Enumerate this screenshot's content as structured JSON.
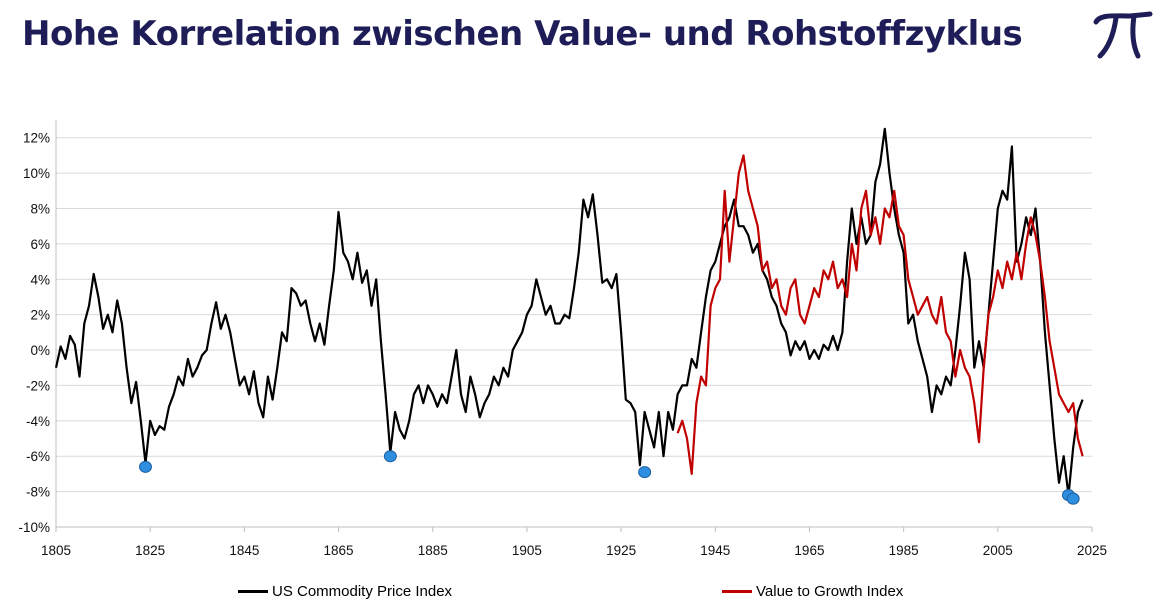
{
  "page": {
    "title": "Hohe Korrelation zwischen Value- und Rohstoffzyklus",
    "logo_icon": "pi-logo-icon"
  },
  "chart_data": {
    "type": "line",
    "title": "",
    "xlabel": "",
    "ylabel": "",
    "xlim": [
      1805,
      2025
    ],
    "ylim": [
      -10,
      13
    ],
    "x_ticks": [
      1805,
      1825,
      1845,
      1865,
      1885,
      1905,
      1925,
      1945,
      1965,
      1985,
      2005,
      2025
    ],
    "y_ticks": [
      -10,
      -8,
      -6,
      -4,
      -2,
      0,
      2,
      4,
      6,
      8,
      10,
      12
    ],
    "y_tick_suffix": "%",
    "grid": "horizontal",
    "legend": "bottom",
    "series": [
      {
        "name": "US Commodity Price Index",
        "color": "#000000",
        "points": [
          [
            1805,
            -1.0
          ],
          [
            1806,
            0.2
          ],
          [
            1807,
            -0.5
          ],
          [
            1808,
            0.8
          ],
          [
            1809,
            0.3
          ],
          [
            1810,
            -1.5
          ],
          [
            1811,
            1.5
          ],
          [
            1812,
            2.5
          ],
          [
            1813,
            4.3
          ],
          [
            1814,
            3.0
          ],
          [
            1815,
            1.2
          ],
          [
            1816,
            2.0
          ],
          [
            1817,
            1.0
          ],
          [
            1818,
            2.8
          ],
          [
            1819,
            1.5
          ],
          [
            1820,
            -1.0
          ],
          [
            1821,
            -3.0
          ],
          [
            1822,
            -1.8
          ],
          [
            1823,
            -4.0
          ],
          [
            1824,
            -6.4
          ],
          [
            1825,
            -4.0
          ],
          [
            1826,
            -4.8
          ],
          [
            1827,
            -4.3
          ],
          [
            1828,
            -4.5
          ],
          [
            1829,
            -3.2
          ],
          [
            1830,
            -2.5
          ],
          [
            1831,
            -1.5
          ],
          [
            1832,
            -2.0
          ],
          [
            1833,
            -0.5
          ],
          [
            1834,
            -1.5
          ],
          [
            1835,
            -1.0
          ],
          [
            1836,
            -0.3
          ],
          [
            1837,
            0.0
          ],
          [
            1838,
            1.5
          ],
          [
            1839,
            2.7
          ],
          [
            1840,
            1.2
          ],
          [
            1841,
            2.0
          ],
          [
            1842,
            1.0
          ],
          [
            1843,
            -0.5
          ],
          [
            1844,
            -2.0
          ],
          [
            1845,
            -1.5
          ],
          [
            1846,
            -2.5
          ],
          [
            1847,
            -1.2
          ],
          [
            1848,
            -3.0
          ],
          [
            1849,
            -3.8
          ],
          [
            1850,
            -1.5
          ],
          [
            1851,
            -2.8
          ],
          [
            1852,
            -1.0
          ],
          [
            1853,
            1.0
          ],
          [
            1854,
            0.5
          ],
          [
            1855,
            3.5
          ],
          [
            1856,
            3.2
          ],
          [
            1857,
            2.5
          ],
          [
            1858,
            2.8
          ],
          [
            1859,
            1.5
          ],
          [
            1860,
            0.5
          ],
          [
            1861,
            1.5
          ],
          [
            1862,
            0.3
          ],
          [
            1863,
            2.5
          ],
          [
            1864,
            4.5
          ],
          [
            1865,
            7.8
          ],
          [
            1866,
            5.5
          ],
          [
            1867,
            5.0
          ],
          [
            1868,
            4.0
          ],
          [
            1869,
            5.5
          ],
          [
            1870,
            3.8
          ],
          [
            1871,
            4.5
          ],
          [
            1872,
            2.5
          ],
          [
            1873,
            4.0
          ],
          [
            1874,
            0.5
          ],
          [
            1875,
            -2.5
          ],
          [
            1876,
            -5.8
          ],
          [
            1877,
            -3.5
          ],
          [
            1878,
            -4.5
          ],
          [
            1879,
            -5.0
          ],
          [
            1880,
            -4.0
          ],
          [
            1881,
            -2.5
          ],
          [
            1882,
            -2.0
          ],
          [
            1883,
            -3.0
          ],
          [
            1884,
            -2.0
          ],
          [
            1885,
            -2.5
          ],
          [
            1886,
            -3.2
          ],
          [
            1887,
            -2.5
          ],
          [
            1888,
            -3.0
          ],
          [
            1889,
            -1.5
          ],
          [
            1890,
            0.0
          ],
          [
            1891,
            -2.5
          ],
          [
            1892,
            -3.5
          ],
          [
            1893,
            -1.5
          ],
          [
            1894,
            -2.5
          ],
          [
            1895,
            -3.8
          ],
          [
            1896,
            -3.0
          ],
          [
            1897,
            -2.5
          ],
          [
            1898,
            -1.5
          ],
          [
            1899,
            -2.0
          ],
          [
            1900,
            -1.0
          ],
          [
            1901,
            -1.5
          ],
          [
            1902,
            0.0
          ],
          [
            1903,
            0.5
          ],
          [
            1904,
            1.0
          ],
          [
            1905,
            2.0
          ],
          [
            1906,
            2.5
          ],
          [
            1907,
            4.0
          ],
          [
            1908,
            3.0
          ],
          [
            1909,
            2.0
          ],
          [
            1910,
            2.5
          ],
          [
            1911,
            1.5
          ],
          [
            1912,
            1.5
          ],
          [
            1913,
            2.0
          ],
          [
            1914,
            1.8
          ],
          [
            1915,
            3.5
          ],
          [
            1916,
            5.5
          ],
          [
            1917,
            8.5
          ],
          [
            1918,
            7.5
          ],
          [
            1919,
            8.8
          ],
          [
            1920,
            6.5
          ],
          [
            1921,
            3.8
          ],
          [
            1922,
            4.0
          ],
          [
            1923,
            3.5
          ],
          [
            1924,
            4.3
          ],
          [
            1925,
            1.0
          ],
          [
            1926,
            -2.8
          ],
          [
            1927,
            -3.0
          ],
          [
            1928,
            -3.5
          ],
          [
            1929,
            -6.5
          ],
          [
            1930,
            -3.5
          ],
          [
            1931,
            -4.5
          ],
          [
            1932,
            -5.5
          ],
          [
            1933,
            -3.5
          ],
          [
            1934,
            -6.0
          ],
          [
            1935,
            -3.5
          ],
          [
            1936,
            -4.5
          ],
          [
            1937,
            -2.5
          ],
          [
            1938,
            -2.0
          ],
          [
            1939,
            -2.0
          ],
          [
            1940,
            -0.5
          ],
          [
            1941,
            -1.0
          ],
          [
            1942,
            1.0
          ],
          [
            1943,
            3.0
          ],
          [
            1944,
            4.5
          ],
          [
            1945,
            5.0
          ],
          [
            1946,
            6.0
          ],
          [
            1947,
            7.0
          ],
          [
            1948,
            7.5
          ],
          [
            1949,
            8.5
          ],
          [
            1950,
            7.0
          ],
          [
            1951,
            7.0
          ],
          [
            1952,
            6.5
          ],
          [
            1953,
            5.5
          ],
          [
            1954,
            6.0
          ],
          [
            1955,
            4.5
          ],
          [
            1956,
            4.0
          ],
          [
            1957,
            3.0
          ],
          [
            1958,
            2.5
          ],
          [
            1959,
            1.5
          ],
          [
            1960,
            1.0
          ],
          [
            1961,
            -0.3
          ],
          [
            1962,
            0.5
          ],
          [
            1963,
            0.0
          ],
          [
            1964,
            0.5
          ],
          [
            1965,
            -0.5
          ],
          [
            1966,
            0.0
          ],
          [
            1967,
            -0.5
          ],
          [
            1968,
            0.3
          ],
          [
            1969,
            0.0
          ],
          [
            1970,
            0.8
          ],
          [
            1971,
            0.0
          ],
          [
            1972,
            1.0
          ],
          [
            1973,
            5.0
          ],
          [
            1974,
            8.0
          ],
          [
            1975,
            6.0
          ],
          [
            1976,
            7.5
          ],
          [
            1977,
            6.0
          ],
          [
            1978,
            6.5
          ],
          [
            1979,
            9.5
          ],
          [
            1980,
            10.5
          ],
          [
            1981,
            12.5
          ],
          [
            1982,
            10.0
          ],
          [
            1983,
            8.0
          ],
          [
            1984,
            6.5
          ],
          [
            1985,
            5.5
          ],
          [
            1986,
            1.5
          ],
          [
            1987,
            2.0
          ],
          [
            1988,
            0.5
          ],
          [
            1989,
            -0.5
          ],
          [
            1990,
            -1.5
          ],
          [
            1991,
            -3.5
          ],
          [
            1992,
            -2.0
          ],
          [
            1993,
            -2.5
          ],
          [
            1994,
            -1.5
          ],
          [
            1995,
            -2.0
          ],
          [
            1996,
            0.0
          ],
          [
            1997,
            2.5
          ],
          [
            1998,
            5.5
          ],
          [
            1999,
            4.0
          ],
          [
            2000,
            -1.0
          ],
          [
            2001,
            0.5
          ],
          [
            2002,
            -1.0
          ],
          [
            2003,
            2.0
          ],
          [
            2004,
            5.0
          ],
          [
            2005,
            8.0
          ],
          [
            2006,
            9.0
          ],
          [
            2007,
            8.5
          ],
          [
            2008,
            11.5
          ],
          [
            2009,
            5.0
          ],
          [
            2010,
            6.0
          ],
          [
            2011,
            7.5
          ],
          [
            2012,
            6.5
          ],
          [
            2013,
            8.0
          ],
          [
            2014,
            5.0
          ],
          [
            2015,
            1.0
          ],
          [
            2016,
            -2.0
          ],
          [
            2017,
            -5.0
          ],
          [
            2018,
            -7.5
          ],
          [
            2019,
            -6.0
          ],
          [
            2020,
            -8.2
          ],
          [
            2021,
            -5.5
          ],
          [
            2022,
            -3.5
          ],
          [
            2023,
            -2.8
          ]
        ]
      },
      {
        "name": "Value to Growth Index",
        "color": "#c00000",
        "points": [
          [
            1937,
            -4.7
          ],
          [
            1938,
            -4.0
          ],
          [
            1939,
            -5.0
          ],
          [
            1940,
            -7.0
          ],
          [
            1941,
            -3.0
          ],
          [
            1942,
            -1.5
          ],
          [
            1943,
            -2.0
          ],
          [
            1944,
            2.5
          ],
          [
            1945,
            3.5
          ],
          [
            1946,
            4.0
          ],
          [
            1947,
            9.0
          ],
          [
            1948,
            5.0
          ],
          [
            1949,
            7.5
          ],
          [
            1950,
            10.0
          ],
          [
            1951,
            11.0
          ],
          [
            1952,
            9.0
          ],
          [
            1953,
            8.0
          ],
          [
            1954,
            7.0
          ],
          [
            1955,
            4.5
          ],
          [
            1956,
            5.0
          ],
          [
            1957,
            3.5
          ],
          [
            1958,
            4.0
          ],
          [
            1959,
            2.5
          ],
          [
            1960,
            2.0
          ],
          [
            1961,
            3.5
          ],
          [
            1962,
            4.0
          ],
          [
            1963,
            2.0
          ],
          [
            1964,
            1.5
          ],
          [
            1965,
            2.5
          ],
          [
            1966,
            3.5
          ],
          [
            1967,
            3.0
          ],
          [
            1968,
            4.5
          ],
          [
            1969,
            4.0
          ],
          [
            1970,
            5.0
          ],
          [
            1971,
            3.5
          ],
          [
            1972,
            4.0
          ],
          [
            1973,
            3.0
          ],
          [
            1974,
            6.0
          ],
          [
            1975,
            4.5
          ],
          [
            1976,
            8.0
          ],
          [
            1977,
            9.0
          ],
          [
            1978,
            6.5
          ],
          [
            1979,
            7.5
          ],
          [
            1980,
            6.0
          ],
          [
            1981,
            8.0
          ],
          [
            1982,
            7.5
          ],
          [
            1983,
            9.0
          ],
          [
            1984,
            7.0
          ],
          [
            1985,
            6.5
          ],
          [
            1986,
            4.0
          ],
          [
            1987,
            3.0
          ],
          [
            1988,
            2.0
          ],
          [
            1989,
            2.5
          ],
          [
            1990,
            3.0
          ],
          [
            1991,
            2.0
          ],
          [
            1992,
            1.5
          ],
          [
            1993,
            3.0
          ],
          [
            1994,
            1.0
          ],
          [
            1995,
            0.5
          ],
          [
            1996,
            -1.5
          ],
          [
            1997,
            0.0
          ],
          [
            1998,
            -1.0
          ],
          [
            1999,
            -1.5
          ],
          [
            2000,
            -3.0
          ],
          [
            2001,
            -5.2
          ],
          [
            2002,
            -1.0
          ],
          [
            2003,
            2.0
          ],
          [
            2004,
            3.0
          ],
          [
            2005,
            4.5
          ],
          [
            2006,
            3.5
          ],
          [
            2007,
            5.0
          ],
          [
            2008,
            4.0
          ],
          [
            2009,
            5.5
          ],
          [
            2010,
            4.0
          ],
          [
            2011,
            6.0
          ],
          [
            2012,
            7.5
          ],
          [
            2013,
            6.5
          ],
          [
            2014,
            5.0
          ],
          [
            2015,
            3.0
          ],
          [
            2016,
            0.5
          ],
          [
            2017,
            -1.0
          ],
          [
            2018,
            -2.5
          ],
          [
            2019,
            -3.0
          ],
          [
            2020,
            -3.5
          ],
          [
            2021,
            -3.0
          ],
          [
            2022,
            -5.0
          ],
          [
            2023,
            -6.0
          ]
        ]
      }
    ],
    "markers": {
      "name": "troughs",
      "color": "#2e8fe0",
      "points": [
        [
          1824,
          -6.6
        ],
        [
          1876,
          -6.0
        ],
        [
          1930,
          -6.9
        ],
        [
          2020,
          -8.2
        ],
        [
          2021,
          -8.4
        ]
      ]
    }
  },
  "legend": {
    "commodity_label": "US Commodity Price Index",
    "value_growth_label": "Value to Growth Index"
  }
}
